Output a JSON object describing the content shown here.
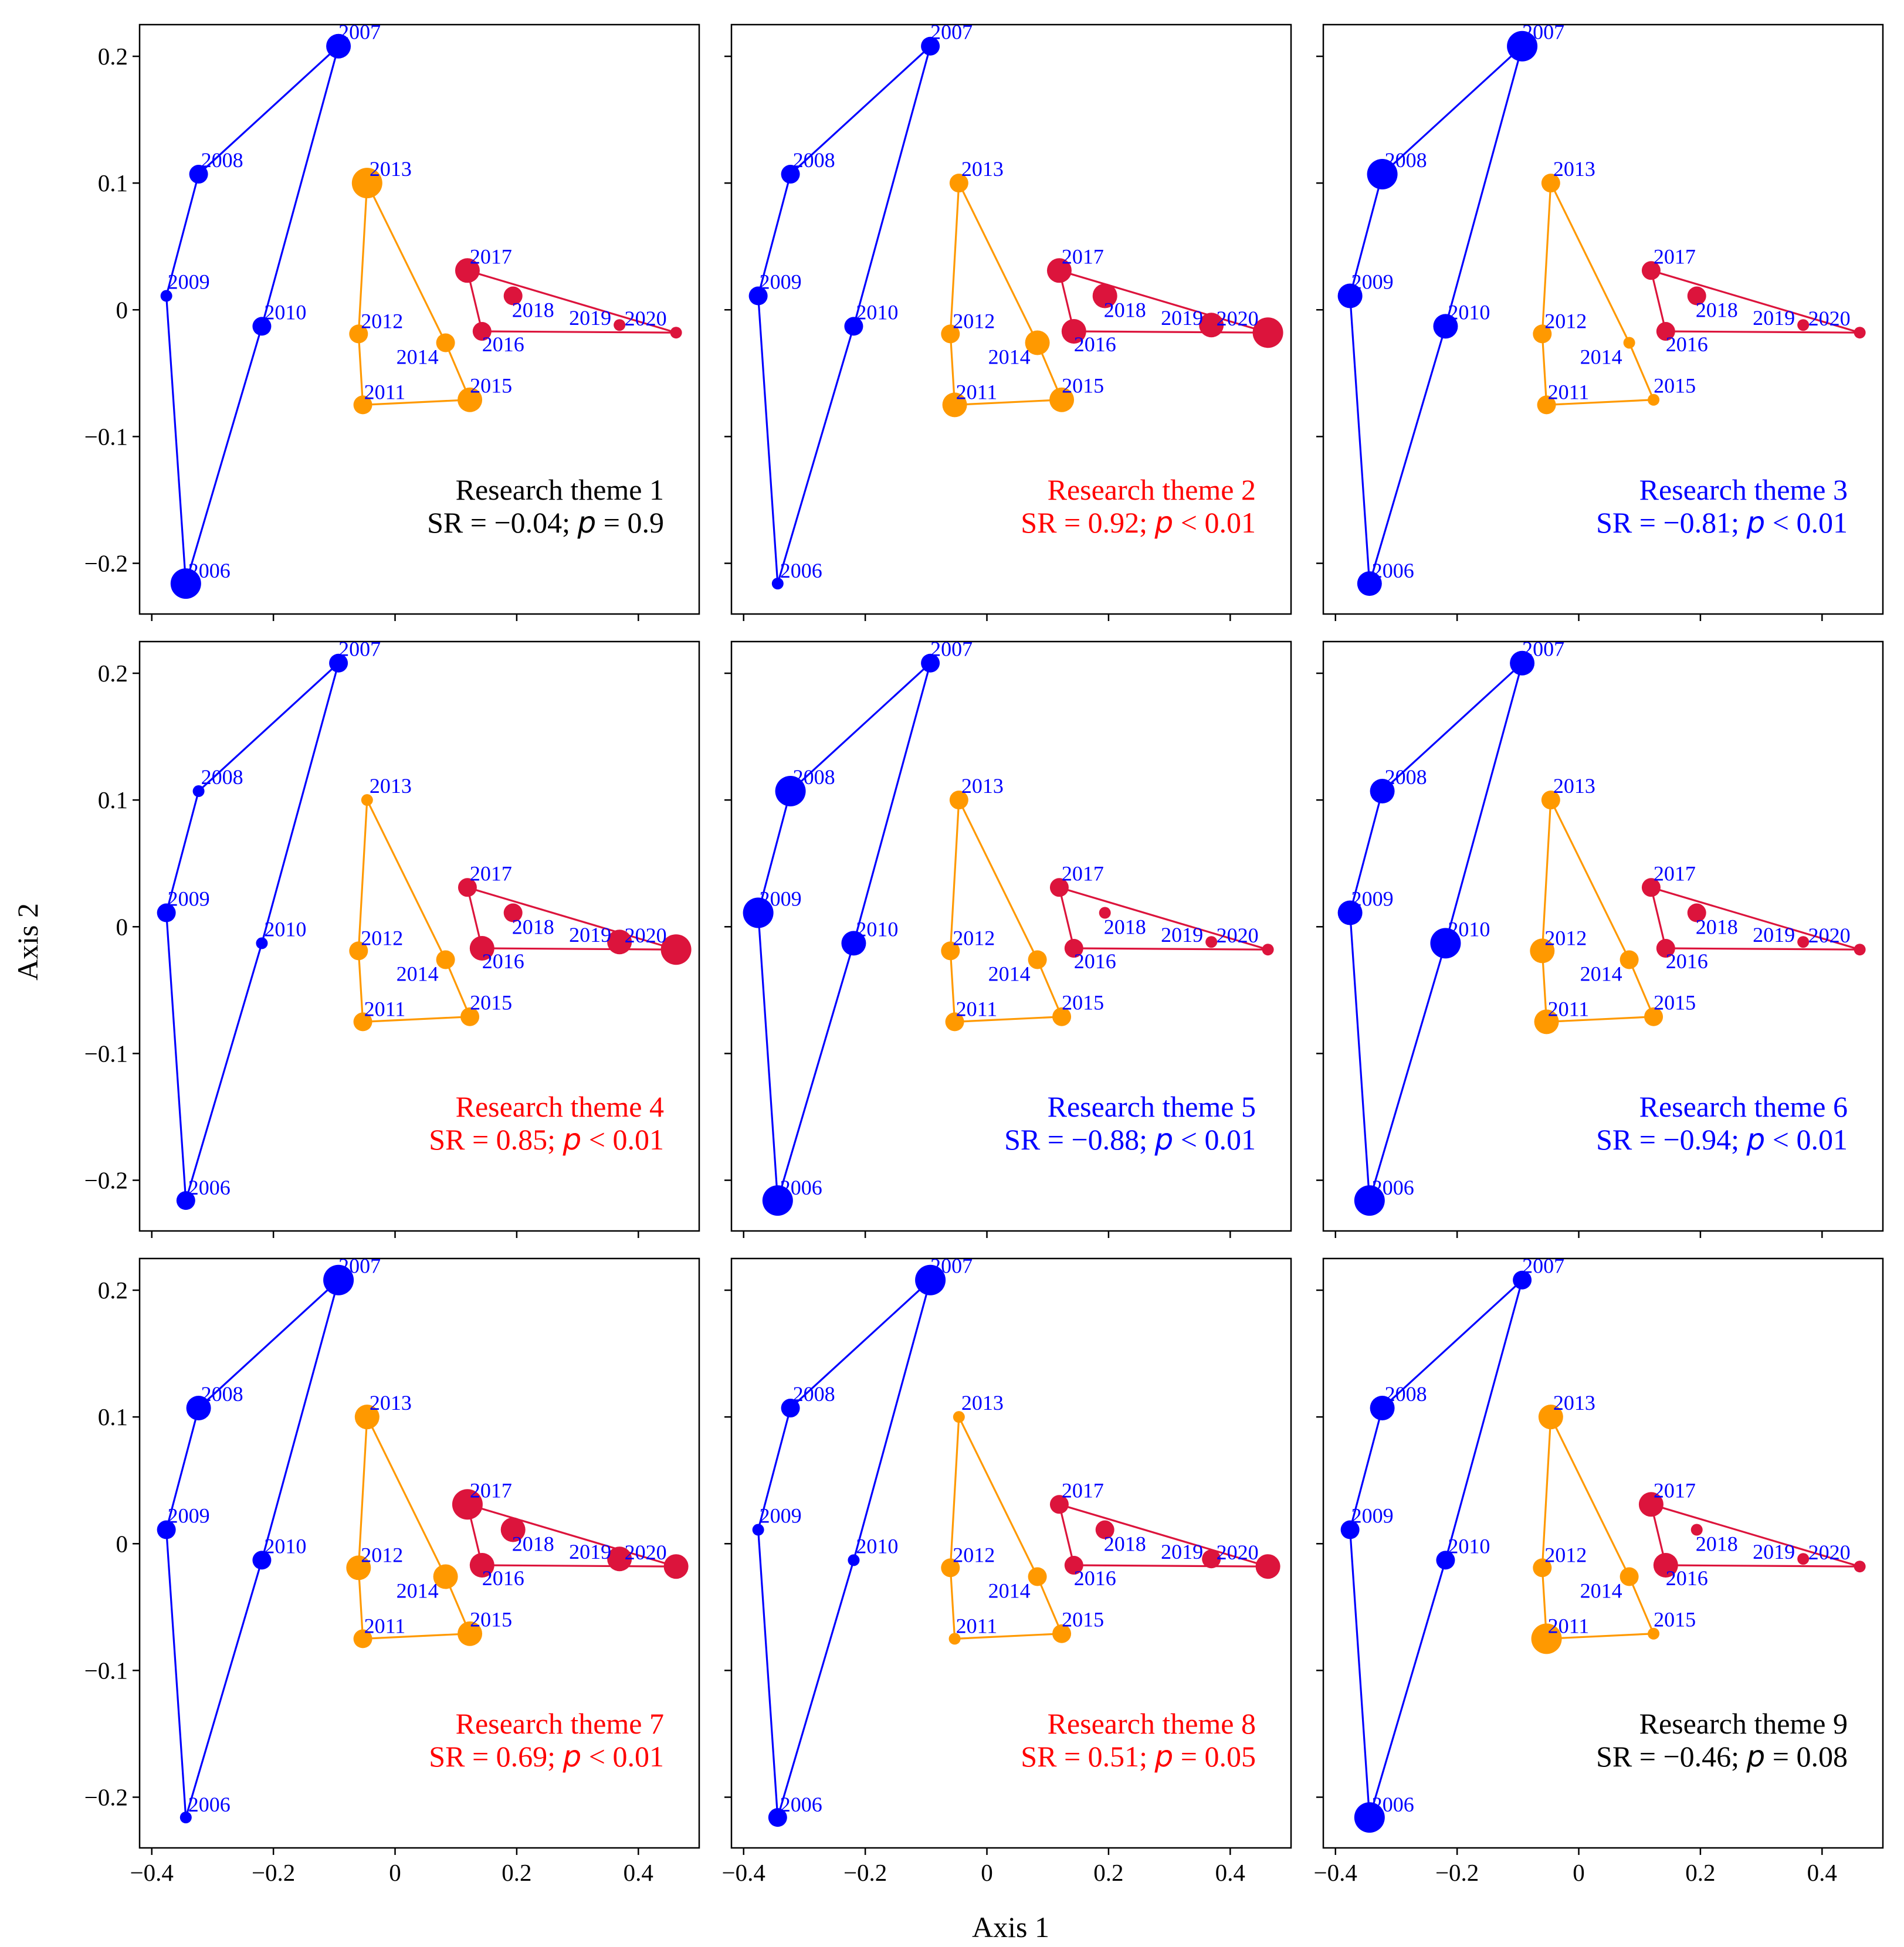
{
  "chart_data": {
    "type": "scatter",
    "xlabel": "Axis 1",
    "ylabel": "Axis 2",
    "xlim": [
      -0.42,
      0.5
    ],
    "ylim": [
      -0.24,
      0.225
    ],
    "x_ticks": [
      -0.4,
      -0.2,
      0,
      0.2,
      0.4
    ],
    "x_tick_labels": [
      "−0.4",
      "−0.2",
      "0",
      "0.2",
      "0.4"
    ],
    "y_ticks": [
      0.2,
      0.1,
      0,
      -0.1,
      -0.2
    ],
    "y_tick_labels": [
      "0.2",
      "0.1",
      "0",
      "−0.1",
      "−0.2"
    ],
    "grid": false,
    "colors": {
      "period1": "#0000ff",
      "period2": "#ff9900",
      "period3": "#dc143c",
      "positive": "#ff0000",
      "negative": "#0000ff",
      "neutral": "#000000"
    },
    "points": [
      {
        "year": "2006",
        "x": -0.344,
        "y": -0.216,
        "group": 1
      },
      {
        "year": "2007",
        "x": -0.093,
        "y": 0.208,
        "group": 1
      },
      {
        "year": "2008",
        "x": -0.323,
        "y": 0.107,
        "group": 1
      },
      {
        "year": "2009",
        "x": -0.376,
        "y": 0.011,
        "group": 1
      },
      {
        "year": "2010",
        "x": -0.219,
        "y": -0.013,
        "group": 1
      },
      {
        "year": "2011",
        "x": -0.053,
        "y": -0.075,
        "group": 2
      },
      {
        "year": "2012",
        "x": -0.06,
        "y": -0.019,
        "group": 2
      },
      {
        "year": "2013",
        "x": -0.046,
        "y": 0.1,
        "group": 2
      },
      {
        "year": "2014",
        "x": 0.083,
        "y": -0.026,
        "group": 2
      },
      {
        "year": "2015",
        "x": 0.123,
        "y": -0.071,
        "group": 2
      },
      {
        "year": "2016",
        "x": 0.143,
        "y": -0.017,
        "group": 3
      },
      {
        "year": "2017",
        "x": 0.119,
        "y": 0.031,
        "group": 3
      },
      {
        "year": "2018",
        "x": 0.194,
        "y": 0.011,
        "group": 3
      },
      {
        "year": "2019",
        "x": 0.369,
        "y": -0.012,
        "group": 3
      },
      {
        "year": "2020",
        "x": 0.462,
        "y": -0.018,
        "group": 3
      }
    ],
    "polygons": [
      {
        "group": 1,
        "order": [
          "2006",
          "2009",
          "2008",
          "2007",
          "2010",
          "2006"
        ]
      },
      {
        "group": 2,
        "order": [
          "2013",
          "2012",
          "2011",
          "2015",
          "2014",
          "2013"
        ]
      },
      {
        "group": 3,
        "order": [
          "2017",
          "2016",
          "2020",
          "2017"
        ]
      }
    ],
    "panels": [
      {
        "theme": "Research theme 1",
        "sr": "SR = −0.04; ",
        "p_symbol": "p",
        "p_value": " = 0.9",
        "significance": "neutral",
        "sizes": [
          4,
          3,
          2,
          1,
          2,
          2,
          2,
          4,
          2,
          3,
          2,
          3,
          2,
          1,
          1
        ]
      },
      {
        "theme": "Research theme 2",
        "sr": "SR = 0.92; ",
        "p_symbol": "p",
        "p_value": " < 0.01",
        "significance": "positive",
        "sizes": [
          1,
          2,
          2,
          2,
          2,
          3,
          2,
          2,
          3,
          3,
          3,
          3,
          3,
          3,
          4
        ]
      },
      {
        "theme": "Research theme 3",
        "sr": "SR = −0.81; ",
        "p_symbol": "p",
        "p_value": " < 0.01",
        "significance": "negative",
        "sizes": [
          3,
          4,
          4,
          3,
          3,
          2,
          2,
          2,
          1,
          1,
          2,
          2,
          2,
          1,
          1
        ]
      },
      {
        "theme": "Research theme 4",
        "sr": "SR = 0.85; ",
        "p_symbol": "p",
        "p_value": " < 0.01",
        "significance": "positive",
        "sizes": [
          2,
          2,
          1,
          2,
          1,
          2,
          2,
          1,
          2,
          2,
          3,
          2,
          2,
          3,
          4
        ]
      },
      {
        "theme": "Research theme 5",
        "sr": "SR = −0.88; ",
        "p_symbol": "p",
        "p_value": " < 0.01",
        "significance": "negative",
        "sizes": [
          4,
          2,
          4,
          4,
          3,
          2,
          2,
          2,
          2,
          2,
          2,
          2,
          1,
          1,
          1
        ]
      },
      {
        "theme": "Research theme 6",
        "sr": "SR = −0.94; ",
        "p_symbol": "p",
        "p_value": " < 0.01",
        "significance": "negative",
        "sizes": [
          4,
          3,
          3,
          3,
          4,
          3,
          3,
          2,
          2,
          2,
          2,
          2,
          2,
          1,
          1
        ]
      },
      {
        "theme": "Research theme 7",
        "sr": "SR = 0.69; ",
        "p_symbol": "p",
        "p_value": " < 0.01",
        "significance": "positive",
        "sizes": [
          1,
          4,
          3,
          2,
          2,
          2,
          3,
          3,
          3,
          3,
          3,
          4,
          3,
          3,
          3
        ]
      },
      {
        "theme": "Research theme 8",
        "sr": "SR = 0.51; ",
        "p_symbol": "p",
        "p_value": " = 0.05",
        "significance": "positive",
        "sizes": [
          2,
          4,
          2,
          1,
          1,
          1,
          2,
          1,
          2,
          2,
          2,
          2,
          2,
          2,
          3
        ]
      },
      {
        "theme": "Research theme 9",
        "sr": "SR = −0.46; ",
        "p_symbol": "p",
        "p_value": " = 0.08",
        "significance": "neutral",
        "sizes": [
          4,
          2,
          3,
          2,
          2,
          4,
          2,
          3,
          2,
          1,
          3,
          3,
          1,
          1,
          1
        ]
      }
    ]
  }
}
